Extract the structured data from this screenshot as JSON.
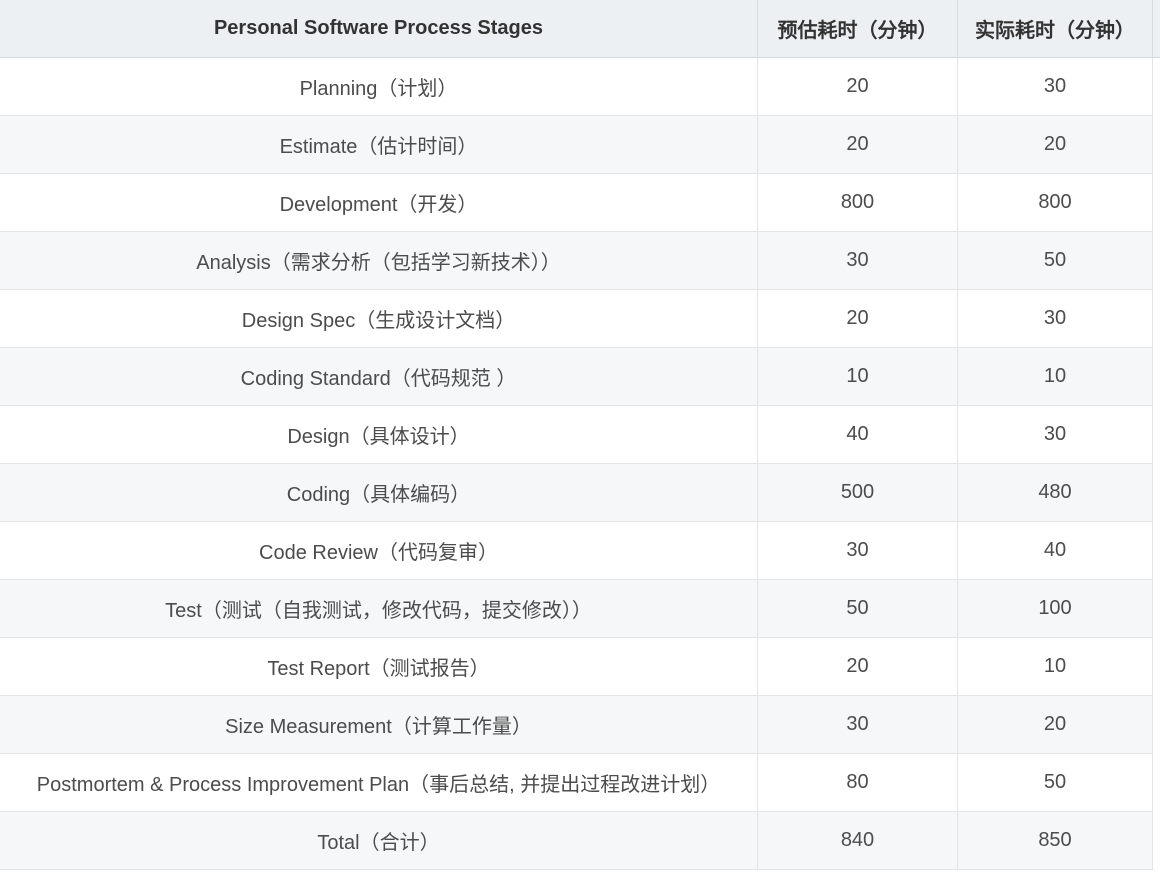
{
  "table": {
    "columns": [
      "Personal Software Process Stages",
      "预估耗时（分钟）",
      "实际耗时（分钟）"
    ],
    "rows": [
      {
        "stage": "Planning（计划）",
        "estimated": "20",
        "actual": "30"
      },
      {
        "stage": "Estimate（估计时间）",
        "estimated": "20",
        "actual": "20"
      },
      {
        "stage": "Development（开发）",
        "estimated": "800",
        "actual": "800"
      },
      {
        "stage": "Analysis（需求分析（包括学习新技术））",
        "estimated": "30",
        "actual": "50"
      },
      {
        "stage": "Design Spec（生成设计文档）",
        "estimated": "20",
        "actual": "30"
      },
      {
        "stage": "Coding Standard（代码规范 ）",
        "estimated": "10",
        "actual": "10"
      },
      {
        "stage": "Design（具体设计）",
        "estimated": "40",
        "actual": "30"
      },
      {
        "stage": "Coding（具体编码）",
        "estimated": "500",
        "actual": "480"
      },
      {
        "stage": "Code Review（代码复审）",
        "estimated": "30",
        "actual": "40"
      },
      {
        "stage": "Test（测试（自我测试，修改代码，提交修改））",
        "estimated": "50",
        "actual": "100"
      },
      {
        "stage": "Test Report（测试报告）",
        "estimated": "20",
        "actual": "10"
      },
      {
        "stage": "Size Measurement（计算工作量）",
        "estimated": "30",
        "actual": "20"
      },
      {
        "stage": "Postmortem & Process Improvement Plan（事后总结, 并提出过程改进计划）",
        "estimated": "80",
        "actual": "50"
      },
      {
        "stage": "Total（合计）",
        "estimated": "840",
        "actual": "850"
      }
    ]
  },
  "colors": {
    "header_bg": "#ecf0f3",
    "alt_row_bg": "#f6f7f8",
    "border": "#e3e4e6",
    "header_border": "#d7dadd",
    "text": "#4c4c4c",
    "header_text": "#333333"
  }
}
